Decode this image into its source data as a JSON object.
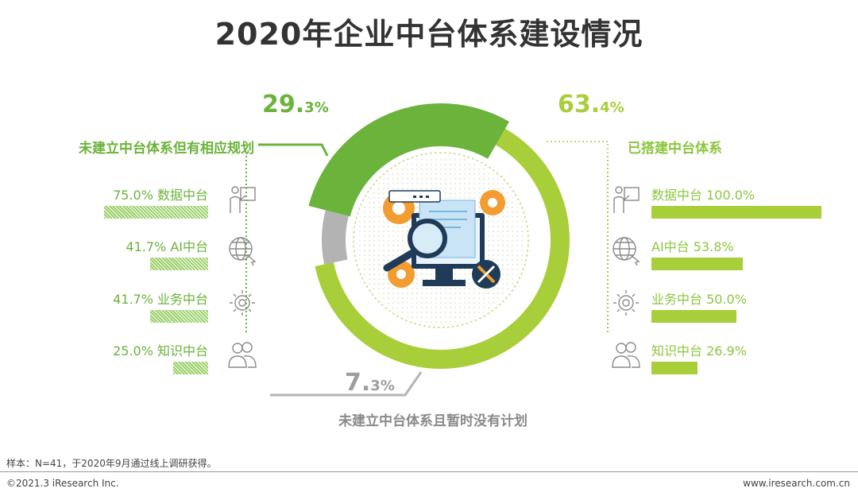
{
  "title": "2020年企业中台体系建设情况",
  "colors": {
    "dark_green": "#6bb33a",
    "lime": "#a8cf3a",
    "gray": "#b3b3b3",
    "orange": "#f39c32",
    "dark": "#333333"
  },
  "chart_data": [
    {
      "type": "pie",
      "variant": "donut",
      "title": "",
      "slices": [
        {
          "label": "已搭建中台体系",
          "value": 63.4,
          "num": "63.",
          "dec": "4",
          "unit": "%",
          "color": "#a8cf3a"
        },
        {
          "label": "未建立中台体系且暂时没有计划",
          "value": 7.3,
          "num": "7.",
          "dec": "3",
          "unit": "%",
          "color": "#b3b3b3"
        },
        {
          "label": "未建立中台体系但有相应规划",
          "value": 29.3,
          "num": "29.",
          "dec": "3",
          "unit": "%",
          "color": "#6bb33a"
        }
      ]
    },
    {
      "type": "bar",
      "orientation": "horizontal",
      "group": "未建立中台体系但有相应规划",
      "categories": [
        "数据中台",
        "AI中台",
        "业务中台",
        "知识中台"
      ],
      "values": [
        75.0,
        41.7,
        41.7,
        25.0
      ],
      "labels": [
        "75.0%  数据中台",
        "41.7% AI中台",
        "41.7% 业务中台",
        "25.0% 知识中台"
      ],
      "xlim": [
        0,
        100
      ]
    },
    {
      "type": "bar",
      "orientation": "horizontal",
      "group": "已搭建中台体系",
      "categories": [
        "数据中台",
        "AI中台",
        "业务中台",
        "知识中台"
      ],
      "values": [
        100.0,
        53.8,
        50.0,
        26.9
      ],
      "labels": [
        "数据中台 100.0%",
        "AI中台 53.8%",
        "业务中台 50.0%",
        "知识中台 26.9%"
      ],
      "xlim": [
        0,
        100
      ]
    }
  ],
  "icons": [
    "presenter-icon",
    "globe-cursor-icon",
    "gear-refresh-icon",
    "users-icon"
  ],
  "footer": {
    "note": "样本：N=41，于2020年9月通过线上调研获得。",
    "copyright": "©2021.3 iResearch Inc.",
    "website": "www.iresearch.com.cn"
  }
}
